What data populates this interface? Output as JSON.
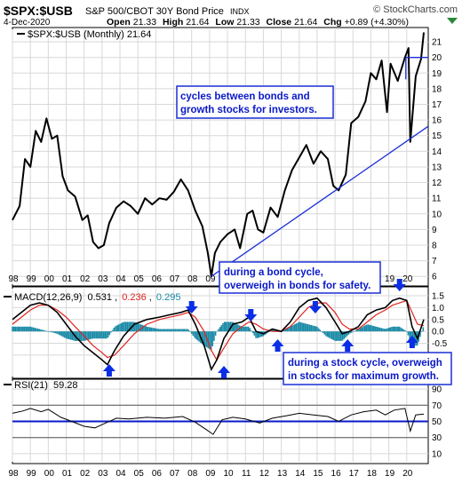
{
  "header": {
    "symbol": "$SPX:$USB",
    "description": "S&P 500/CBOT 30Y Bond Price",
    "exchange": "INDX",
    "watermark": "© StockCharts.com",
    "date": "4-Dec-2020",
    "open_label": "Open",
    "open": "21.33",
    "high_label": "High",
    "high": "21.64",
    "low_label": "Low",
    "low": "21.33",
    "close_label": "Close",
    "close": "21.64",
    "chg_label": "Chg",
    "chg": "+0.89 (+4.30%)"
  },
  "colors": {
    "price": "#000000",
    "trendline": "#1a2ed6",
    "macd_line": "#000000",
    "signal_line": "#e0231f",
    "histogram": "#1a8aa6",
    "rsi_line": "#000000",
    "rsi50_line": "#0a19c8",
    "annotation_border": "#1a2ed6",
    "annotation_text": "#0a19c8",
    "arrow": "#0a2ee6",
    "grid": "#d8d8d8"
  },
  "annotations": {
    "top_box": "cycles between bonds and growth stocks for investors.",
    "bond_box": "during a bond cycle, overweigh in bonds for safety.",
    "stock_box": "during a stock cycle, overweigh in stocks for maximum growth."
  },
  "chart_data": [
    {
      "type": "line",
      "panel": "price",
      "legend": "$SPX:$USB (Monthly) 21.64",
      "legend_symbol": "$SPX:$USB",
      "legend_text": "(Monthly) 21.64",
      "x": [
        1998.0,
        1998.4,
        1998.7,
        1999.0,
        1999.3,
        1999.6,
        1999.9,
        2000.2,
        2000.5,
        2000.8,
        2001.1,
        2001.5,
        2001.9,
        2002.2,
        2002.5,
        2002.8,
        2003.1,
        2003.4,
        2003.8,
        2004.2,
        2004.6,
        2005.0,
        2005.4,
        2005.8,
        2006.2,
        2006.6,
        2007.0,
        2007.4,
        2007.8,
        2008.2,
        2008.6,
        2008.9,
        2009.1,
        2009.3,
        2009.6,
        2010.0,
        2010.4,
        2010.7,
        2011.1,
        2011.4,
        2011.7,
        2012.0,
        2012.4,
        2012.8,
        2013.2,
        2013.6,
        2014.0,
        2014.4,
        2014.8,
        2015.2,
        2015.6,
        2015.9,
        2016.2,
        2016.6,
        2016.9,
        2017.3,
        2017.7,
        2018.0,
        2018.3,
        2018.6,
        2018.9,
        2019.1,
        2019.5,
        2019.9,
        2020.1,
        2020.2,
        2020.5,
        2020.8,
        2020.95
      ],
      "values": [
        9.6,
        10.5,
        13.5,
        13.0,
        15.3,
        14.6,
        16.1,
        14.8,
        15.0,
        12.4,
        11.5,
        11.1,
        9.6,
        9.9,
        8.2,
        7.8,
        8.0,
        9.4,
        10.4,
        10.8,
        10.5,
        10.0,
        11.0,
        10.6,
        11.0,
        10.9,
        11.4,
        12.2,
        11.5,
        10.2,
        9.2,
        7.5,
        6.0,
        7.5,
        8.2,
        8.7,
        9.0,
        7.8,
        10.0,
        10.2,
        9.0,
        8.8,
        10.4,
        9.8,
        11.5,
        12.8,
        13.6,
        14.4,
        13.2,
        14.0,
        13.5,
        11.8,
        11.5,
        12.5,
        15.8,
        16.2,
        17.2,
        19.0,
        18.6,
        19.8,
        16.5,
        19.6,
        18.5,
        20.0,
        20.6,
        14.6,
        18.8,
        19.9,
        21.6
      ],
      "xlim": [
        1998,
        2021.2
      ],
      "ylim": [
        5.5,
        21.8
      ],
      "yticks": [
        6,
        7,
        8,
        9,
        10,
        11,
        12,
        13,
        14,
        15,
        16,
        17,
        18,
        19,
        20,
        21
      ],
      "trendline": {
        "x": [
          2009.1,
          2021.2
        ],
        "values": [
          6.0,
          15.6
        ]
      },
      "resistance": {
        "x": [
          2019.95,
          2021.2
        ],
        "values": [
          20.0,
          20.0
        ]
      },
      "xticks": [
        "98",
        "99",
        "00",
        "01",
        "02",
        "03",
        "04",
        "05",
        "06",
        "07",
        "08",
        "09",
        "10",
        "11",
        "12",
        "13",
        "14",
        "15",
        "16",
        "17",
        "18",
        "19",
        "20"
      ]
    },
    {
      "type": "line",
      "panel": "macd",
      "legend_name": "MACD(12,26,9)",
      "legend_values": [
        "0.531",
        "0.236",
        "0.295"
      ],
      "x": [
        1998.0,
        1998.5,
        1999.0,
        1999.5,
        2000.0,
        2000.5,
        2001.0,
        2001.5,
        2002.0,
        2002.5,
        2003.0,
        2003.3,
        2003.7,
        2004.2,
        2004.8,
        2005.5,
        2006.2,
        2006.8,
        2007.4,
        2007.8,
        2008.2,
        2008.7,
        2009.1,
        2009.4,
        2009.8,
        2010.3,
        2010.8,
        2011.2,
        2011.6,
        2012.0,
        2012.5,
        2013.0,
        2013.5,
        2014.0,
        2014.5,
        2015.0,
        2015.5,
        2016.0,
        2016.4,
        2016.8,
        2017.3,
        2017.8,
        2018.3,
        2018.8,
        2019.2,
        2019.6,
        2020.0,
        2020.3,
        2020.6,
        2020.95
      ],
      "macd": [
        0.5,
        0.8,
        1.1,
        1.2,
        1.1,
        0.8,
        0.3,
        -0.2,
        -0.6,
        -0.9,
        -1.2,
        -1.4,
        -0.8,
        -0.2,
        0.3,
        0.5,
        0.6,
        0.7,
        0.8,
        0.9,
        0.3,
        -0.6,
        -1.6,
        -1.2,
        -0.3,
        0.3,
        0.4,
        0.6,
        0.0,
        -0.1,
        0.1,
        0.0,
        0.4,
        1.0,
        1.3,
        1.4,
        1.0,
        0.4,
        -0.1,
        0.0,
        0.2,
        0.7,
        0.9,
        1.0,
        1.3,
        1.4,
        1.3,
        0.2,
        -0.3,
        0.5
      ],
      "signal": [
        0.3,
        0.6,
        0.9,
        1.1,
        1.1,
        0.9,
        0.6,
        0.2,
        -0.2,
        -0.6,
        -0.9,
        -1.1,
        -1.0,
        -0.6,
        -0.1,
        0.3,
        0.5,
        0.6,
        0.7,
        0.8,
        0.6,
        0.0,
        -0.8,
        -1.2,
        -0.7,
        -0.1,
        0.2,
        0.4,
        0.3,
        0.1,
        0.0,
        0.0,
        0.2,
        0.6,
        1.0,
        1.2,
        1.2,
        0.8,
        0.3,
        0.1,
        0.1,
        0.4,
        0.7,
        0.9,
        1.1,
        1.2,
        1.3,
        0.8,
        0.3,
        0.24
      ],
      "ylim": [
        -1.9,
        1.8
      ],
      "yticks": [
        1.5,
        1.0,
        0.5,
        0.0,
        -0.5,
        -1.0
      ]
    },
    {
      "type": "line",
      "panel": "rsi",
      "legend_name": "RSI(21)",
      "legend_value": "59.28",
      "x": [
        1998.0,
        1998.6,
        1999.0,
        1999.6,
        2000.0,
        2000.7,
        2001.3,
        2002.0,
        2002.6,
        2003.2,
        2003.8,
        2004.5,
        2005.5,
        2006.5,
        2007.5,
        2008.2,
        2008.8,
        2009.2,
        2009.7,
        2010.3,
        2011.0,
        2011.8,
        2012.5,
        2013.3,
        2014.0,
        2014.8,
        2015.6,
        2016.2,
        2016.9,
        2017.6,
        2018.3,
        2018.8,
        2019.3,
        2019.9,
        2020.2,
        2020.5,
        2020.95
      ],
      "values": [
        60,
        63,
        66,
        62,
        65,
        55,
        50,
        44,
        42,
        48,
        54,
        53,
        55,
        54,
        56,
        49,
        40,
        34,
        52,
        55,
        53,
        48,
        54,
        57,
        60,
        58,
        56,
        50,
        58,
        62,
        64,
        58,
        64,
        66,
        38,
        58,
        59
      ],
      "ylim": [
        0,
        100
      ],
      "yticks": [
        90,
        70,
        50,
        30,
        10
      ],
      "overbought": 70,
      "oversold": 30,
      "midline": 50
    }
  ]
}
